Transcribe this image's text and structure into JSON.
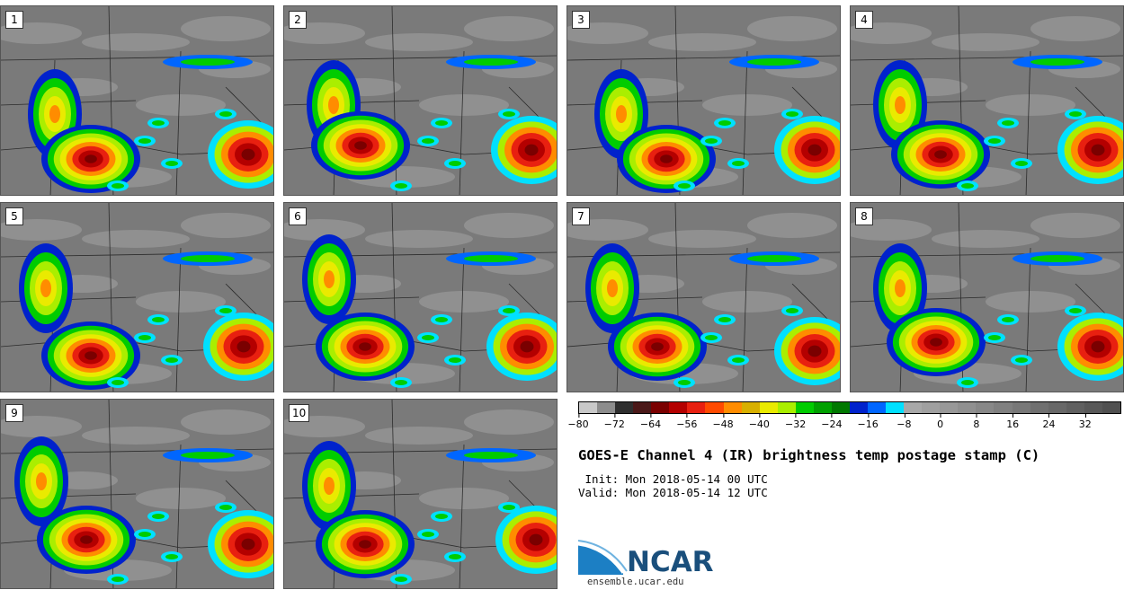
{
  "title": "GOES-E Channel 4 (IR) brightness temp postage stamp (C)",
  "init": " Init: Mon 2018-05-14 00 UTC",
  "valid": "Valid: Mon 2018-05-14 12 UTC",
  "panels": [
    "1",
    "2",
    "3",
    "4",
    "5",
    "6",
    "7",
    "8",
    "9",
    "10"
  ],
  "colorbar": {
    "min": -80,
    "max": 40,
    "tick_labels": [
      "−80",
      "−72",
      "−64",
      "−56",
      "−48",
      "−40",
      "−32",
      "−24",
      "−16",
      "−8",
      "0",
      "8",
      "16",
      "24",
      "32"
    ],
    "tick_values": [
      -80,
      -72,
      -64,
      -56,
      -48,
      -40,
      -32,
      -24,
      -16,
      -8,
      0,
      8,
      16,
      24,
      32
    ],
    "colors": [
      "#c8c8c8",
      "#8c8c8c",
      "#2e2e2e",
      "#4a1818",
      "#7a0000",
      "#b40000",
      "#e82010",
      "#ff4a00",
      "#ff8c00",
      "#d8b000",
      "#eaea00",
      "#aaee00",
      "#00cc00",
      "#00a000",
      "#007800",
      "#0022cc",
      "#0066ff",
      "#00e0ff",
      "#a8a8a8",
      "#a0a0a0",
      "#989898",
      "#909090",
      "#888888",
      "#808080",
      "#787878",
      "#707070",
      "#686868",
      "#606060",
      "#585858",
      "#505050"
    ]
  },
  "logo": {
    "word": "NCAR",
    "url": "ensemble.ucar.edu"
  }
}
